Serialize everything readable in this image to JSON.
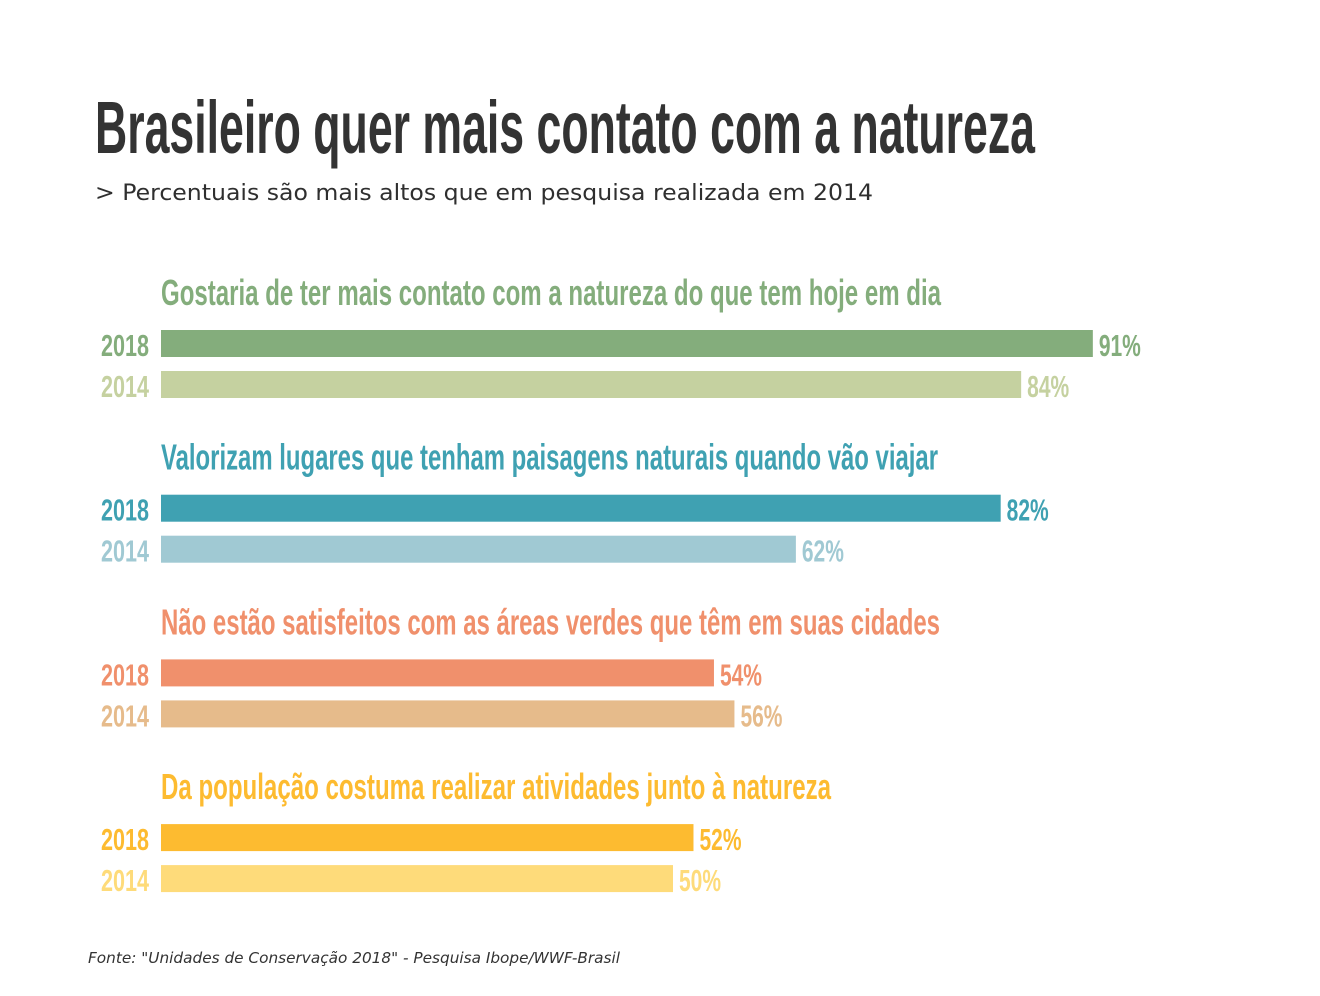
{
  "chart_data": {
    "type": "bar",
    "orientation": "horizontal",
    "title": "Brasileiro quer mais contato com a natureza",
    "subtitle": "> Percentuais são mais altos que em pesquisa realizada em 2014",
    "source": "Fonte: \"Unidades de Conservação 2018\" - Pesquisa Ibope/WWF-Brasil",
    "xlim": [
      0,
      100
    ],
    "grid": false,
    "unit": "%",
    "series_names": [
      "2018",
      "2014"
    ],
    "groups": [
      {
        "label": "Gostaria de ter mais contato com a natureza do que tem hoje em dia",
        "colors": {
          "2018": "#84ad7c",
          "2014": "#c5d1a0"
        },
        "values": [
          {
            "year": "2018",
            "value": 91,
            "label": "91%"
          },
          {
            "year": "2014",
            "value": 84,
            "label": "84%"
          }
        ]
      },
      {
        "label": "Valorizam lugares que tenham paisagens naturais quando vão viajar",
        "colors": {
          "2018": "#3fa1b2",
          "2014": "#a0c9d3"
        },
        "values": [
          {
            "year": "2018",
            "value": 82,
            "label": "82%"
          },
          {
            "year": "2014",
            "value": 62,
            "label": "62%"
          }
        ]
      },
      {
        "label": "Não estão satisfeitos com as áreas verdes que têm em suas cidades",
        "colors": {
          "2018": "#f0906c",
          "2014": "#e6bb8b"
        },
        "values": [
          {
            "year": "2018",
            "value": 54,
            "label": "54%"
          },
          {
            "year": "2014",
            "value": 56,
            "label": "56%"
          }
        ]
      },
      {
        "label": "Da população costuma realizar atividades junto à natureza",
        "colors": {
          "2018": "#fdbb30",
          "2014": "#fedb7a"
        },
        "values": [
          {
            "year": "2018",
            "value": 52,
            "label": "52%"
          },
          {
            "year": "2014",
            "value": 50,
            "label": "50%"
          }
        ]
      }
    ]
  }
}
